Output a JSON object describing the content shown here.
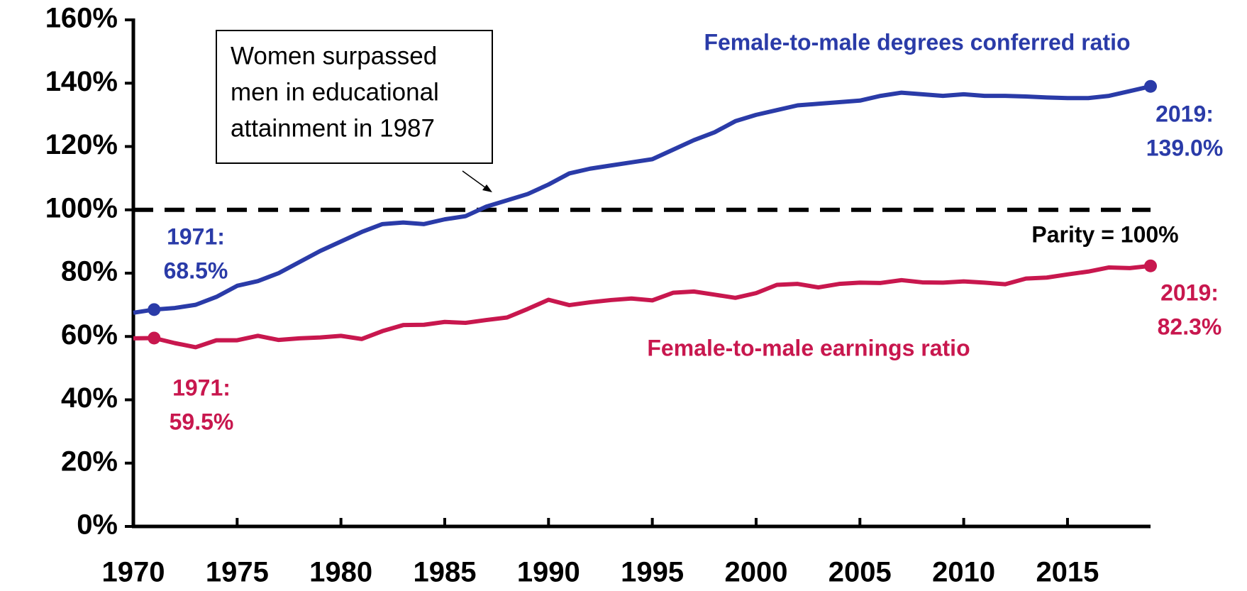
{
  "chart_data": {
    "type": "line",
    "x": [
      1970,
      1971,
      1972,
      1973,
      1974,
      1975,
      1976,
      1977,
      1978,
      1979,
      1980,
      1981,
      1982,
      1983,
      1984,
      1985,
      1986,
      1987,
      1988,
      1989,
      1990,
      1991,
      1992,
      1993,
      1994,
      1995,
      1996,
      1997,
      1998,
      1999,
      2000,
      2001,
      2002,
      2003,
      2004,
      2005,
      2006,
      2007,
      2008,
      2009,
      2010,
      2011,
      2012,
      2013,
      2014,
      2015,
      2016,
      2017,
      2018,
      2019
    ],
    "series": [
      {
        "name": "Female-to-male degrees conferred ratio",
        "color": "#2a3ba8",
        "values": [
          67.5,
          68.5,
          69,
          70,
          72.5,
          76,
          77.5,
          80,
          83.5,
          87,
          90,
          93,
          95.5,
          96,
          95.5,
          97,
          98,
          101,
          103,
          105,
          108,
          111.5,
          113,
          114,
          115,
          116,
          119,
          122,
          124.5,
          128,
          130,
          131.5,
          133,
          133.5,
          134,
          134.5,
          136,
          137,
          136.5,
          136,
          136.5,
          136,
          136,
          135.8,
          135.5,
          135.3,
          135.3,
          136,
          137.5,
          139.0
        ],
        "point_labels": [
          [
            "1971:",
            "68.5%"
          ],
          [
            "2019:",
            "139.0%"
          ]
        ]
      },
      {
        "name": "Female-to-male earnings ratio",
        "color": "#c8174e",
        "values": [
          59.4,
          59.5,
          57.9,
          56.6,
          58.8,
          58.8,
          60.2,
          58.9,
          59.4,
          59.7,
          60.2,
          59.2,
          61.7,
          63.6,
          63.7,
          64.6,
          64.3,
          65.2,
          66.0,
          68.7,
          71.6,
          69.9,
          70.8,
          71.5,
          72.0,
          71.4,
          73.8,
          74.2,
          73.2,
          72.2,
          73.7,
          76.3,
          76.6,
          75.5,
          76.6,
          77.0,
          76.9,
          77.8,
          77.1,
          77.0,
          77.4,
          77.0,
          76.5,
          78.3,
          78.6,
          79.6,
          80.5,
          81.8,
          81.6,
          82.3
        ],
        "point_labels": [
          [
            "1971:",
            "59.5%"
          ],
          [
            "2019:",
            "82.3%"
          ]
        ]
      }
    ],
    "xlim": [
      1970,
      2019
    ],
    "xticks": [
      1970,
      1975,
      1980,
      1985,
      1990,
      1995,
      2000,
      2005,
      2010,
      2015
    ],
    "ylim": [
      0,
      160
    ],
    "yticks": [
      {
        "value": 0,
        "label": "0%"
      },
      {
        "value": 20,
        "label": "20%"
      },
      {
        "value": 40,
        "label": "40%"
      },
      {
        "value": 60,
        "label": "60%"
      },
      {
        "value": 80,
        "label": "80%"
      },
      {
        "value": 100,
        "label": "100%"
      },
      {
        "value": 120,
        "label": "120%"
      },
      {
        "value": 140,
        "label": "140%"
      },
      {
        "value": 160,
        "label": "160%"
      }
    ],
    "reference_line": {
      "value": 100,
      "label": "Parity = 100%"
    },
    "annotation": {
      "lines": [
        "Women surpassed",
        "men in educational",
        "attainment in 1987"
      ]
    }
  }
}
